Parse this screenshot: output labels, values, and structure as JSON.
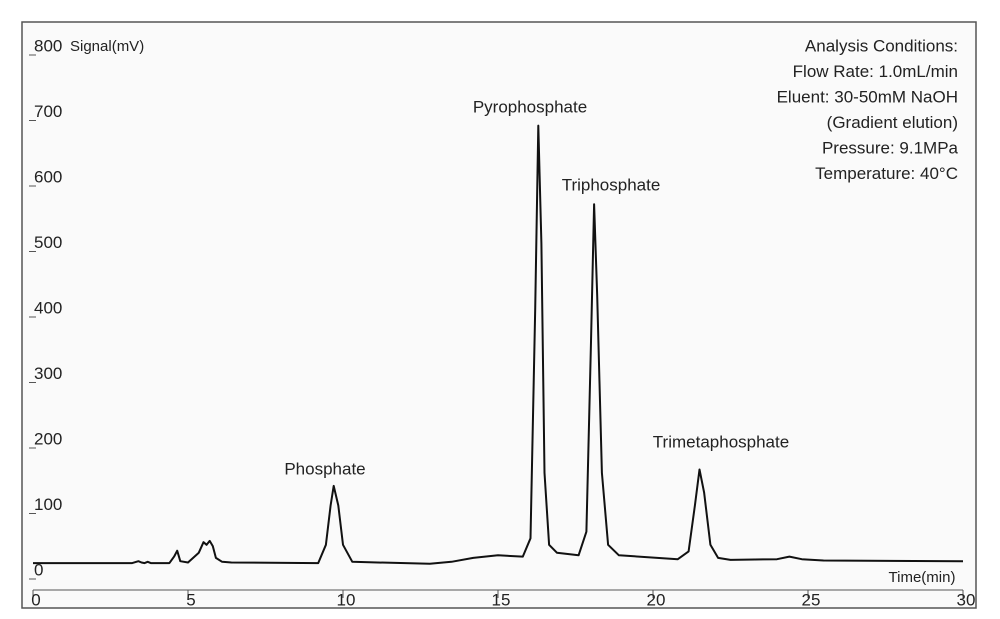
{
  "chart_data": {
    "type": "line",
    "y_label": "Signal(mV)",
    "x_label": "Time(min)",
    "x": [
      0,
      3.2,
      3.4,
      3.5,
      3.6,
      3.7,
      3.8,
      4.4,
      4.55,
      4.65,
      4.75,
      5.0,
      5.35,
      5.5,
      5.6,
      5.7,
      5.8,
      5.9,
      6.1,
      6.4,
      9.2,
      9.45,
      9.6,
      9.7,
      9.85,
      10.0,
      10.3,
      12.8,
      13.5,
      14.2,
      15.0,
      15.8,
      16.05,
      16.2,
      16.3,
      16.4,
      16.5,
      16.65,
      16.9,
      17.6,
      17.85,
      18.0,
      18.1,
      18.2,
      18.35,
      18.55,
      18.9,
      20.8,
      21.15,
      21.35,
      21.5,
      21.65,
      21.85,
      22.1,
      22.5,
      24.0,
      24.4,
      24.8,
      25.5,
      30
    ],
    "values": [
      12,
      12,
      15,
      13,
      12,
      14,
      12,
      12,
      22,
      31,
      15,
      13,
      28,
      44,
      40,
      46,
      38,
      20,
      14,
      13,
      12,
      40,
      100,
      130,
      100,
      40,
      14,
      11,
      14,
      20,
      24,
      22,
      50,
      400,
      680,
      500,
      150,
      40,
      28,
      24,
      60,
      350,
      560,
      420,
      150,
      40,
      24,
      18,
      30,
      100,
      155,
      120,
      40,
      20,
      17,
      18,
      22,
      18,
      16,
      15
    ],
    "color": "#111111",
    "xlim": [
      0,
      30
    ],
    "xticks": [
      0,
      5,
      10,
      15,
      20,
      25,
      30
    ],
    "ylim": [
      0,
      800
    ],
    "yticks": [
      0,
      100,
      200,
      300,
      400,
      500,
      600,
      700,
      800
    ],
    "peak_labels": [
      "Phosphate",
      "Pyrophosphate",
      "Triphosphate",
      "Trimetaphosphate"
    ],
    "conditions": [
      "Analysis Conditions:",
      "Flow Rate: 1.0mL/min",
      "Eluent: 30-50mM NaOH",
      "(Gradient elution)",
      "Pressure: 9.1MPa",
      "Temperature: 40°C"
    ]
  }
}
